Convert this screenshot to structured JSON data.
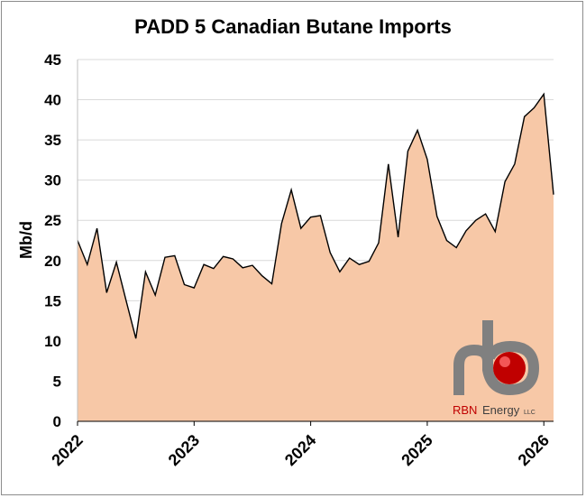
{
  "chart_data": {
    "type": "area",
    "title": "PADD 5 Canadian Butane Imports",
    "ylabel": "Mb/d",
    "xlabel": "",
    "ylim": [
      0,
      45
    ],
    "yticks": [
      0,
      5,
      10,
      15,
      20,
      25,
      30,
      35,
      40,
      45
    ],
    "xlim": [
      "2022-01",
      "2026-02"
    ],
    "xticks": [
      "2022",
      "2023",
      "2024",
      "2025",
      "2026"
    ],
    "grid": true,
    "fill_color": "#f7c8a7",
    "line_color": "#000000",
    "series": [
      {
        "x": [
          "2022-01",
          "2022-02",
          "2022-03",
          "2022-04",
          "2022-05",
          "2022-06",
          "2022-07",
          "2022-08",
          "2022-09",
          "2022-10",
          "2022-11",
          "2022-12",
          "2023-01",
          "2023-02",
          "2023-03",
          "2023-04",
          "2023-05",
          "2023-06",
          "2023-07",
          "2023-08",
          "2023-09",
          "2023-10",
          "2023-11",
          "2023-12",
          "2024-01",
          "2024-02",
          "2024-03",
          "2024-04",
          "2024-05",
          "2024-06",
          "2024-07",
          "2024-08",
          "2024-09",
          "2024-10",
          "2024-11",
          "2024-12",
          "2025-01",
          "2025-02",
          "2025-03",
          "2025-04",
          "2025-05",
          "2025-06",
          "2025-07",
          "2025-08",
          "2025-09",
          "2025-10",
          "2025-11",
          "2025-12",
          "2026-01",
          "2026-02"
        ],
        "values": [
          22.5,
          19.5,
          24,
          16,
          19.8,
          15,
          10.3,
          18.6,
          15.7,
          20.4,
          20.6,
          17,
          16.6,
          19.5,
          19,
          20.5,
          20.2,
          19.1,
          19.4,
          18.1,
          17.1,
          24.6,
          28.8,
          24,
          25.4,
          25.6,
          21,
          18.6,
          20.3,
          19.5,
          19.9,
          22.2,
          32,
          22.9,
          33.6,
          36.2,
          32.6,
          25.5,
          22.5,
          21.6,
          23.7,
          25,
          25.8,
          23.6,
          29.8,
          32,
          37.9,
          39,
          40.7,
          28.2
        ]
      }
    ]
  },
  "logo": {
    "company": "RBN",
    "word": "Energy",
    "suffix": "LLC",
    "red": "#c00000",
    "grey": "#808080"
  }
}
